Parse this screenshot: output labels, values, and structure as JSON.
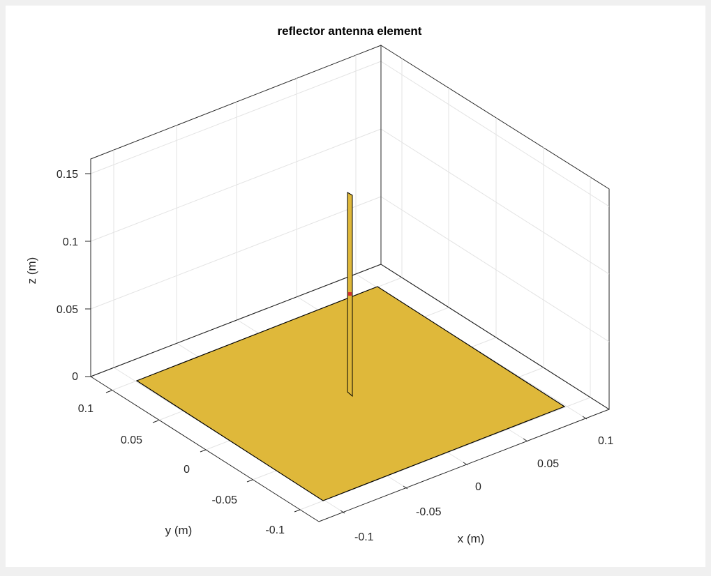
{
  "title": "reflector antenna element",
  "axes": {
    "xlabel": "x (m)",
    "ylabel": "y (m)",
    "zlabel": "z (m)",
    "x_ticks": [
      "-0.1",
      "-0.05",
      "0",
      "0.05",
      "0.1"
    ],
    "y_ticks": [
      "-0.1",
      "-0.05",
      "0",
      "0.05",
      "0.1"
    ],
    "z_ticks": [
      "0",
      "0.05",
      "0.1",
      "0.15"
    ],
    "xlim": [
      -0.12,
      0.12
    ],
    "ylim": [
      -0.12,
      0.12
    ],
    "zlim": [
      0,
      0.16
    ],
    "grid": true
  },
  "colors": {
    "background": "#f0f0f0",
    "axes_background": "#ffffff",
    "reflector": "#dfb83a",
    "dipole": "#dfb83a",
    "feed": "#d32f2f",
    "edge": "#000000"
  }
}
